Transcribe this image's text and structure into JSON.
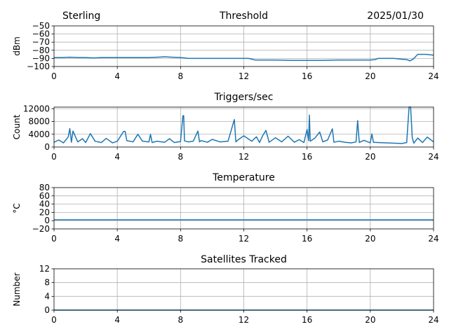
{
  "header": {
    "station": "Sterling",
    "date": "2025/01/30"
  },
  "chart_data": [
    {
      "type": "line",
      "title": "Threshold",
      "xlabel": "",
      "ylabel": "dBm",
      "xlim": [
        0,
        24
      ],
      "ylim": [
        -100,
        -50
      ],
      "xticks": [
        0,
        4,
        8,
        12,
        16,
        20,
        24
      ],
      "yticks": [
        -100,
        -90,
        -80,
        -70,
        -60,
        -50
      ],
      "ytick_labels": [
        "−100",
        "−90",
        "−80",
        "−70",
        "−60",
        "−50"
      ],
      "grid": true,
      "series": [
        {
          "color": "#1f77b4",
          "x": [
            0,
            0.5,
            1,
            1.5,
            2,
            2.5,
            3,
            3.5,
            4,
            4.5,
            5,
            5.5,
            6,
            6.5,
            7,
            7.5,
            8,
            8.5,
            9,
            10,
            11,
            12,
            12.3,
            12.7,
            13,
            14,
            15,
            16,
            17,
            18,
            19,
            20,
            20.3,
            20.5,
            21,
            21.5,
            22,
            22.3,
            22.5,
            22.7,
            23,
            23.5,
            24
          ],
          "y": [
            -89,
            -89,
            -88.5,
            -89,
            -89,
            -89.5,
            -89,
            -89,
            -89,
            -89,
            -89,
            -89,
            -89,
            -88.5,
            -88,
            -88.5,
            -89,
            -90,
            -90,
            -90,
            -90,
            -90,
            -90,
            -92,
            -92,
            -92,
            -92.5,
            -92.5,
            -92.5,
            -92,
            -92,
            -92,
            -91.5,
            -90,
            -90,
            -90,
            -91,
            -91.5,
            -93,
            -91,
            -85,
            -85,
            -86
          ]
        }
      ]
    },
    {
      "type": "line",
      "title": "Triggers/sec",
      "xlabel": "",
      "ylabel": "Count",
      "xlim": [
        0,
        24
      ],
      "ylim": [
        0,
        12500
      ],
      "xticks": [
        0,
        4,
        8,
        12,
        16,
        20,
        24
      ],
      "yticks": [
        0,
        4000,
        8000,
        12000
      ],
      "ytick_labels": [
        "0",
        "4000",
        "8000",
        "12000"
      ],
      "grid": true,
      "series": [
        {
          "color": "#1f77b4",
          "x": [
            0,
            0.3,
            0.6,
            0.9,
            1.0,
            1.1,
            1.2,
            1.5,
            1.8,
            2.0,
            2.3,
            2.6,
            3.0,
            3.3,
            3.7,
            4.0,
            4.4,
            4.5,
            4.6,
            5.0,
            5.3,
            5.6,
            6.0,
            6.1,
            6.2,
            6.5,
            7.0,
            7.3,
            7.6,
            8.0,
            8.15,
            8.2,
            8.25,
            8.5,
            8.8,
            9.1,
            9.2,
            9.3,
            9.7,
            10.0,
            10.5,
            11.0,
            11.4,
            11.5,
            11.6,
            12.0,
            12.5,
            12.8,
            13.0,
            13.2,
            13.4,
            13.6,
            14.0,
            14.4,
            14.8,
            15.2,
            15.5,
            15.8,
            16.0,
            16.1,
            16.15,
            16.2,
            16.5,
            16.8,
            17.0,
            17.3,
            17.6,
            17.7,
            18.0,
            18.4,
            18.8,
            19.1,
            19.2,
            19.3,
            19.6,
            20.0,
            20.1,
            20.2,
            20.5,
            21.0,
            21.5,
            22.0,
            22.3,
            22.45,
            22.55,
            22.65,
            22.75,
            23.0,
            23.3,
            23.6,
            24.0
          ],
          "y": [
            1500,
            2200,
            1300,
            3200,
            5800,
            1500,
            5000,
            1600,
            2600,
            1400,
            4200,
            1800,
            1400,
            2700,
            1300,
            1800,
            4900,
            4900,
            2000,
            1600,
            4000,
            1800,
            1600,
            4000,
            1400,
            1800,
            1500,
            2600,
            1400,
            1700,
            9800,
            9800,
            1900,
            1600,
            1800,
            5000,
            1600,
            2000,
            1500,
            2400,
            1600,
            1800,
            8600,
            1600,
            2100,
            3500,
            1800,
            3200,
            1400,
            3600,
            5200,
            1500,
            2900,
            1600,
            3400,
            1500,
            2300,
            1400,
            5500,
            2000,
            10000,
            1800,
            2800,
            4700,
            1600,
            2200,
            5700,
            1500,
            1800,
            1500,
            1300,
            1600,
            8300,
            1400,
            2100,
            1300,
            4100,
            1500,
            1400,
            1300,
            1200,
            1100,
            1400,
            12500,
            12500,
            3000,
            1200,
            2800,
            1400,
            3100,
            1600
          ]
        }
      ]
    },
    {
      "type": "line",
      "title": "Temperature",
      "xlabel": "",
      "ylabel": "°C",
      "xlim": [
        0,
        24
      ],
      "ylim": [
        -20,
        80
      ],
      "xticks": [
        0,
        4,
        8,
        12,
        16,
        20,
        24
      ],
      "yticks": [
        -20,
        0,
        20,
        40,
        60,
        80
      ],
      "ytick_labels": [
        "−20",
        "0",
        "20",
        "40",
        "60",
        "80"
      ],
      "grid": true,
      "series": [
        {
          "color": "#1f77b4",
          "x": [
            0,
            24
          ],
          "y": [
            2,
            2
          ]
        }
      ]
    },
    {
      "type": "line",
      "title": "Satellites Tracked",
      "xlabel": "",
      "ylabel": "Number",
      "xlim": [
        0,
        24
      ],
      "ylim": [
        0,
        12
      ],
      "xticks": [
        0,
        4,
        8,
        12,
        16,
        20,
        24
      ],
      "yticks": [
        0,
        4,
        8,
        12
      ],
      "ytick_labels": [
        "0",
        "4",
        "8",
        "12"
      ],
      "grid": true,
      "series": [
        {
          "color": "#1f77b4",
          "x": [
            0,
            24
          ],
          "y": [
            0,
            0
          ]
        }
      ]
    }
  ]
}
